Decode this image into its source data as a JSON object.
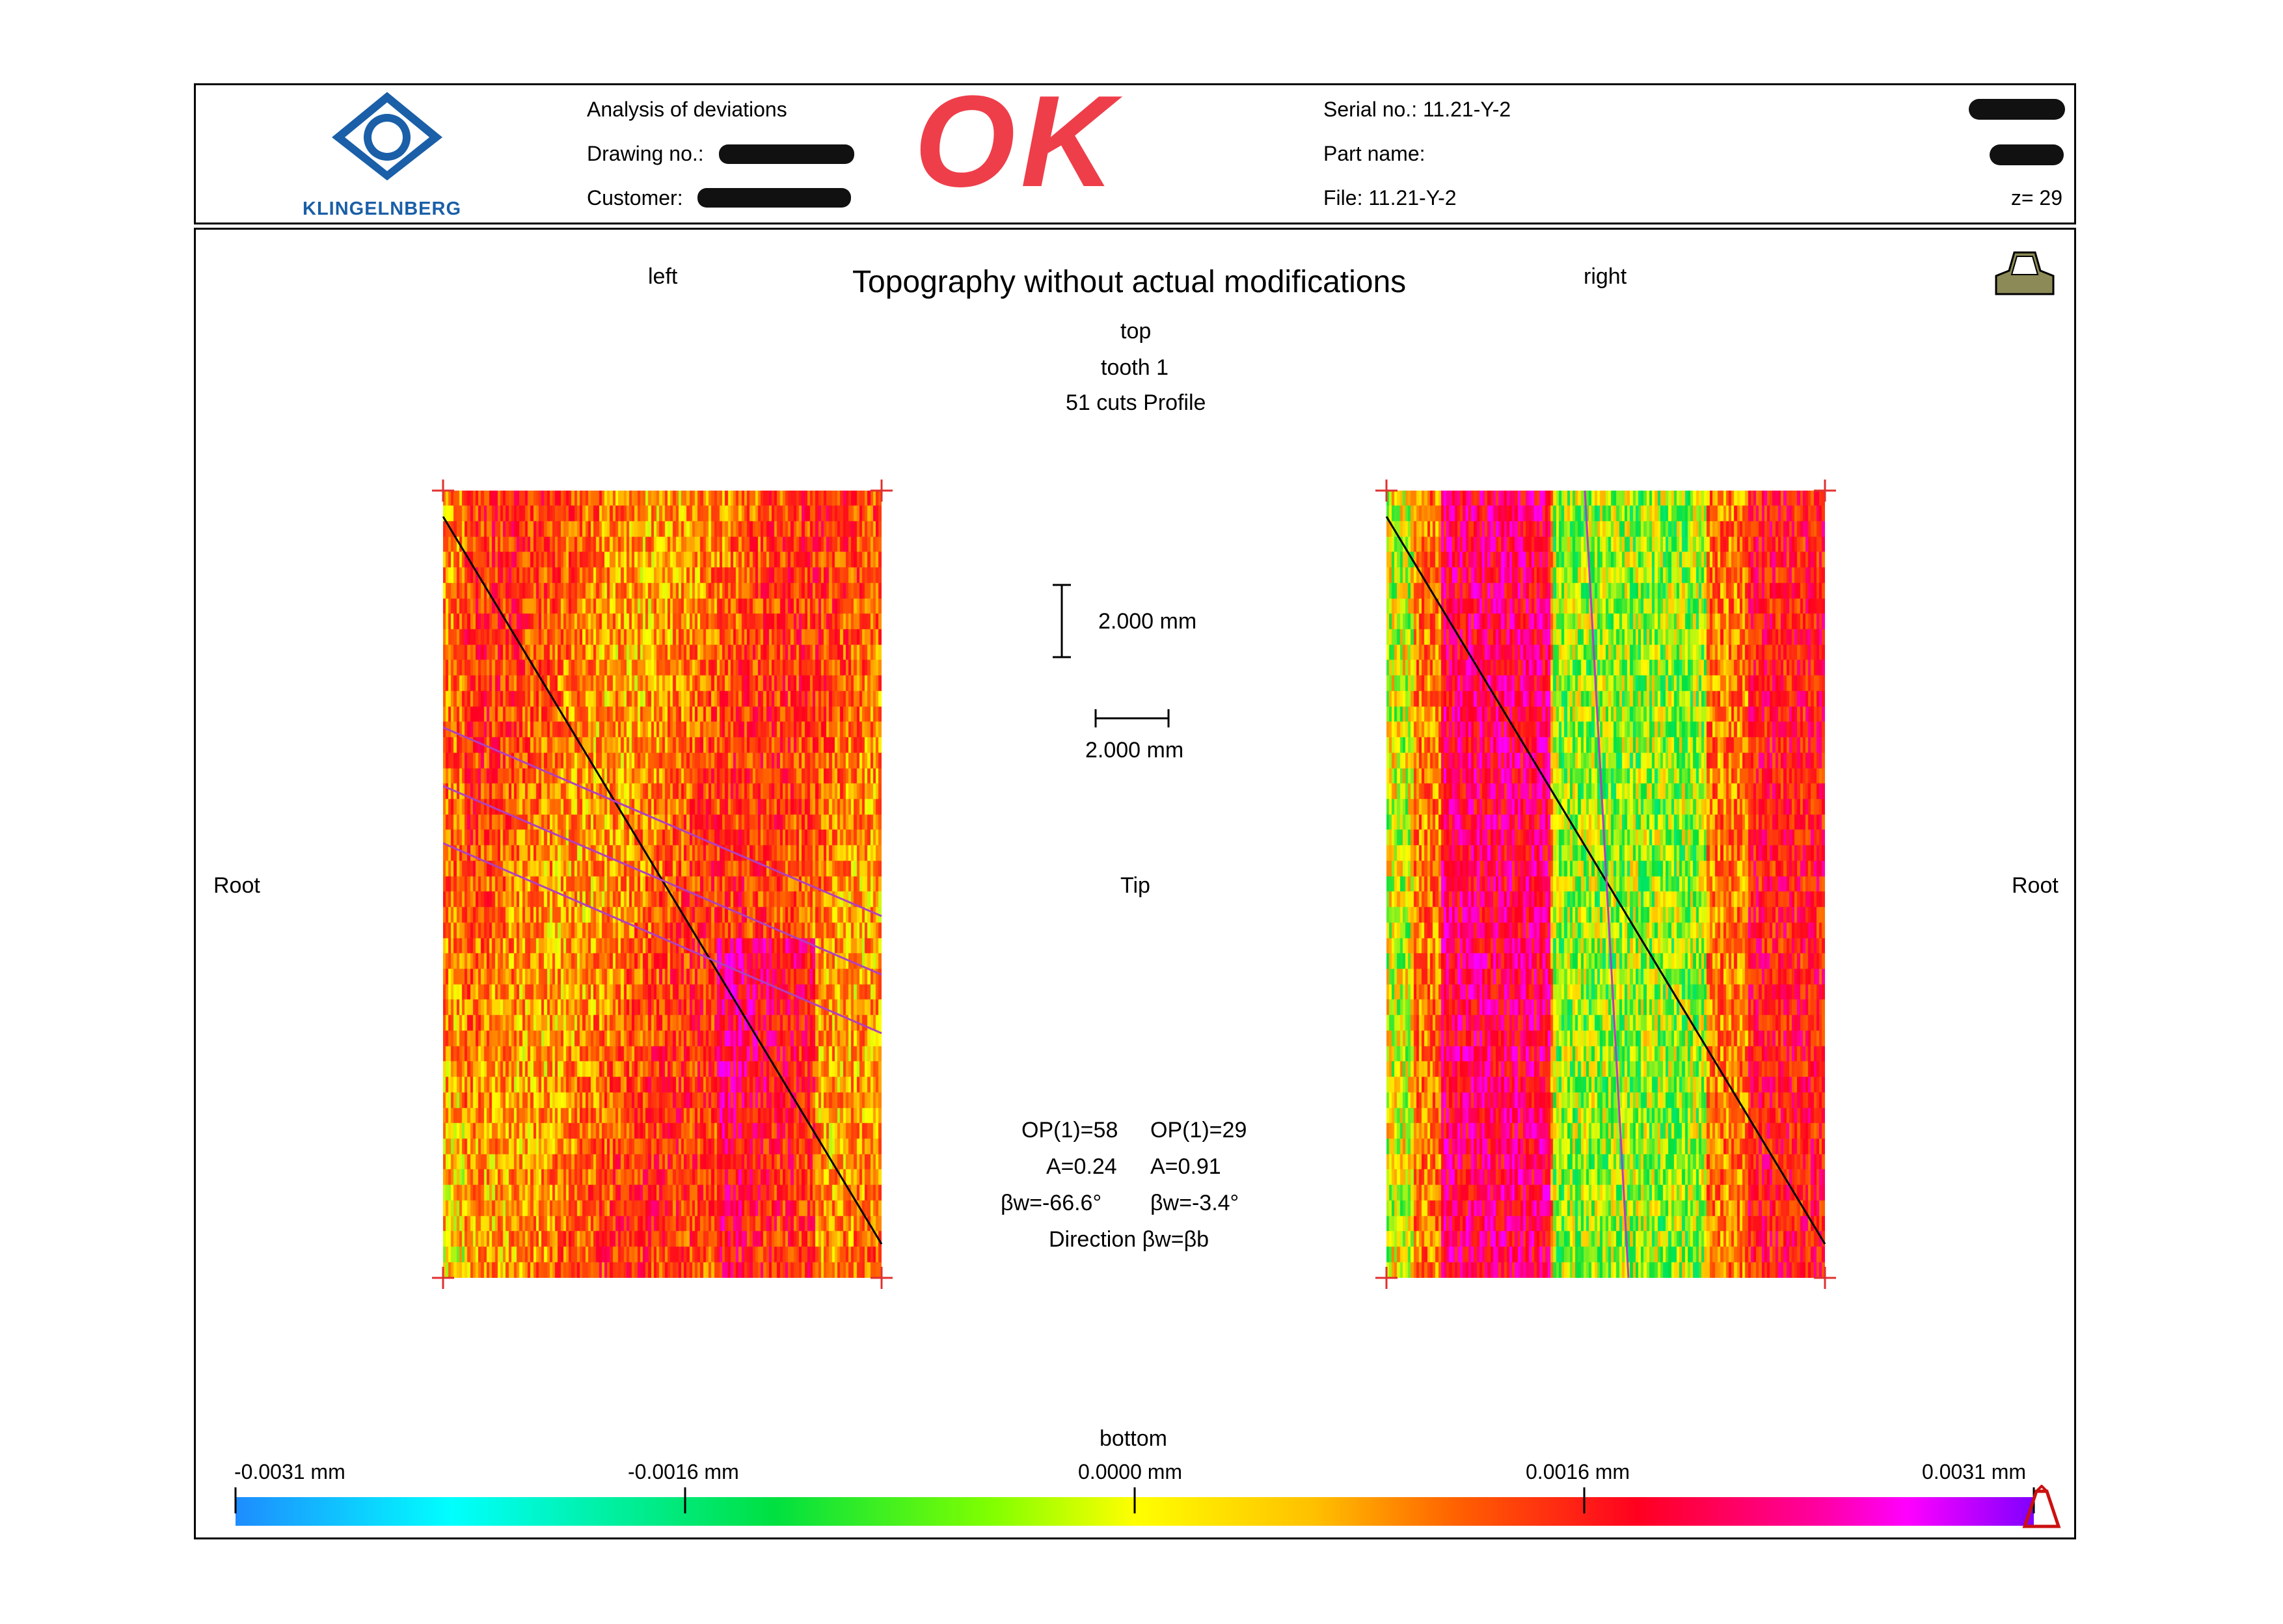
{
  "header": {
    "title_line": "Analysis of deviations",
    "drawing_label": "Drawing no.:",
    "customer_label": "Customer:",
    "logo_text": "KLINGELNBERG",
    "stamp_text": "OK",
    "serial": "Serial no.: 11.21-Y-2",
    "part_name": "Part name:",
    "file": "File: 11.21-Y-2",
    "teeth": "z= 29"
  },
  "chart": {
    "title": "Topography without actual modifications",
    "left_label": "left",
    "right_label": "right",
    "top_label": "top",
    "tooth_label": "tooth 1",
    "cuts_label": "51 cuts Profile",
    "root_left": "Root",
    "tip": "Tip",
    "root_right": "Root",
    "bottom_label": "bottom",
    "scale_vertical": "2.000 mm",
    "scale_horizontal": "2.000 mm"
  },
  "stats": {
    "op_left": "OP(1)=58",
    "op_right": "OP(1)=29",
    "a_left": "A=0.24",
    "a_right": "A=0.91",
    "bw_left": "βw=-66.6°",
    "bw_right": "βw=-3.4°",
    "direction": "Direction βw=βb"
  },
  "chart_data": {
    "type": "heatmap",
    "title": "Topography without actual modifications",
    "panels": [
      {
        "name": "left",
        "cuts": 51,
        "OP": 58,
        "A": 0.24,
        "beta_w_deg": -66.6
      },
      {
        "name": "right",
        "cuts": 51,
        "OP": 29,
        "A": 0.91,
        "beta_w_deg": -3.4
      }
    ],
    "colorbar": {
      "unit": "mm",
      "range": [
        -0.0031,
        0.0031
      ],
      "ticks": [
        -0.0031,
        -0.0016,
        0.0,
        0.0016,
        0.0031
      ],
      "tick_labels": [
        "-0.0031 mm",
        "-0.0016 mm",
        "0.0000 mm",
        "0.0016 mm",
        "0.0031 mm"
      ],
      "colors": [
        "#1e8cff",
        "#00ffff",
        "#00e040",
        "#ffff00",
        "#ff6000",
        "#ff0020",
        "#ff00ff",
        "#8000ff"
      ]
    },
    "scale_bars_mm": {
      "vertical": 2.0,
      "horizontal": 2.0
    }
  }
}
